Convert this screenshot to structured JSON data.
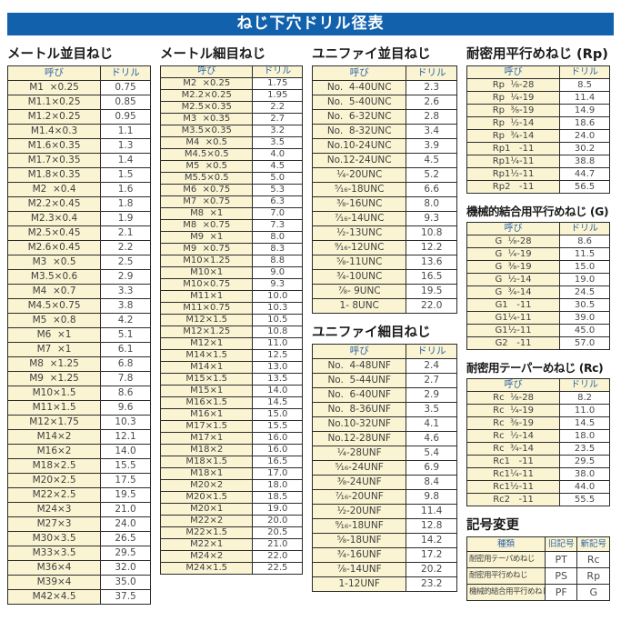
{
  "title": "ねじ下穴ドリル径表",
  "headers": {
    "name": "呼び",
    "drill": "ドリル"
  },
  "colors": {
    "title_bar_blue": "#1161AD",
    "header_text_blue": "#2E64A5",
    "cell_cream": "#FAF4D3",
    "border": "#2B2B2B"
  },
  "sections": {
    "metric_coarse": {
      "title": "メートル並目ねじ",
      "rows": [
        [
          "M1  ×0.25",
          "0.75"
        ],
        [
          "M1.1×0.25",
          "0.85"
        ],
        [
          "M1.2×0.25",
          "0.95"
        ],
        [
          "M1.4×0.3",
          "1.1"
        ],
        [
          "M1.6×0.35",
          "1.3"
        ],
        [
          "M1.7×0.35",
          "1.4"
        ],
        [
          "M1.8×0.35",
          "1.5"
        ],
        [
          "M2  ×0.4",
          "1.6"
        ],
        [
          "M2.2×0.45",
          "1.8"
        ],
        [
          "M2.3×0.4",
          "1.9"
        ],
        [
          "M2.5×0.45",
          "2.1"
        ],
        [
          "M2.6×0.45",
          "2.2"
        ],
        [
          "M3  ×0.5",
          "2.5"
        ],
        [
          "M3.5×0.6",
          "2.9"
        ],
        [
          "M4  ×0.7",
          "3.3"
        ],
        [
          "M4.5×0.75",
          "3.8"
        ],
        [
          "M5  ×0.8",
          "4.2"
        ],
        [
          "M6  ×1",
          "5.1"
        ],
        [
          "M7  ×1",
          "6.1"
        ],
        [
          "M8  ×1.25",
          "6.8"
        ],
        [
          "M9  ×1.25",
          "7.8"
        ],
        [
          "M10×1.5",
          "8.6"
        ],
        [
          "M11×1.5",
          "9.6"
        ],
        [
          "M12×1.75",
          "10.3"
        ],
        [
          "M14×2",
          "12.1"
        ],
        [
          "M16×2",
          "14.0"
        ],
        [
          "M18×2.5",
          "15.5"
        ],
        [
          "M20×2.5",
          "17.5"
        ],
        [
          "M22×2.5",
          "19.5"
        ],
        [
          "M24×3",
          "21.0"
        ],
        [
          "M27×3",
          "24.0"
        ],
        [
          "M30×3.5",
          "26.5"
        ],
        [
          "M33×3.5",
          "29.5"
        ],
        [
          "M36×4",
          "32.0"
        ],
        [
          "M39×4",
          "35.0"
        ],
        [
          "M42×4.5",
          "37.5"
        ]
      ]
    },
    "metric_fine": {
      "title": "メートル細目ねじ",
      "rows": [
        [
          "M2  ×0.25",
          "1.75"
        ],
        [
          "M2.2×0.25",
          "1.95"
        ],
        [
          "M2.5×0.35",
          "2.2"
        ],
        [
          "M3  ×0.35",
          "2.7"
        ],
        [
          "M3.5×0.35",
          "3.2"
        ],
        [
          "M4  ×0.5",
          "3.5"
        ],
        [
          "M4.5×0.5",
          "4.0"
        ],
        [
          "M5  ×0.5",
          "4.5"
        ],
        [
          "M5.5×0.5",
          "5.0"
        ],
        [
          "M6  ×0.75",
          "5.3"
        ],
        [
          "M7  ×0.75",
          "6.3"
        ],
        [
          "M8  ×1",
          "7.0"
        ],
        [
          "M8  ×0.75",
          "7.3"
        ],
        [
          "M9  ×1",
          "8.0"
        ],
        [
          "M9  ×0.75",
          "8.3"
        ],
        [
          "M10×1.25",
          "8.8"
        ],
        [
          "M10×1",
          "9.0"
        ],
        [
          "M10×0.75",
          "9.3"
        ],
        [
          "M11×1",
          "10.0"
        ],
        [
          "M11×0.75",
          "10.3"
        ],
        [
          "M12×1.5",
          "10.5"
        ],
        [
          "M12×1.25",
          "10.8"
        ],
        [
          "M12×1",
          "11.0"
        ],
        [
          "M14×1.5",
          "12.5"
        ],
        [
          "M14×1",
          "13.0"
        ],
        [
          "M15×1.5",
          "13.5"
        ],
        [
          "M15×1",
          "14.0"
        ],
        [
          "M16×1.5",
          "14.5"
        ],
        [
          "M16×1",
          "15.0"
        ],
        [
          "M17×1.5",
          "15.5"
        ],
        [
          "M17×1",
          "16.0"
        ],
        [
          "M18×2",
          "16.0"
        ],
        [
          "M18×1.5",
          "16.5"
        ],
        [
          "M18×1",
          "17.0"
        ],
        [
          "M20×2",
          "18.0"
        ],
        [
          "M20×1.5",
          "18.5"
        ],
        [
          "M20×1",
          "19.0"
        ],
        [
          "M22×2",
          "20.0"
        ],
        [
          "M22×1.5",
          "20.5"
        ],
        [
          "M22×1",
          "21.0"
        ],
        [
          "M24×2",
          "22.0"
        ],
        [
          "M24×1.5",
          "22.5"
        ]
      ]
    },
    "unified_coarse": {
      "title": "ユニファイ並目ねじ",
      "rows": [
        [
          "No.  4-40UNC",
          "2.3"
        ],
        [
          "No.  5-40UNC",
          "2.6"
        ],
        [
          "No.  6-32UNC",
          "2.8"
        ],
        [
          "No.  8-32UNC",
          "3.4"
        ],
        [
          "No.10-24UNC",
          "3.9"
        ],
        [
          "No.12-24UNC",
          "4.5"
        ],
        [
          "¹⁄₄-20UNC",
          "5.2"
        ],
        [
          "⁵⁄₁₆-18UNC",
          "6.6"
        ],
        [
          "³⁄₈-16UNC",
          "8.0"
        ],
        [
          "⁷⁄₁₆-14UNC",
          "9.3"
        ],
        [
          "¹⁄₂-13UNC",
          "10.8"
        ],
        [
          "⁹⁄₁₆-12UNC",
          "12.2"
        ],
        [
          "⁵⁄₈-11UNC",
          "13.6"
        ],
        [
          "³⁄₄-10UNC",
          "16.5"
        ],
        [
          "⁷⁄₈- 9UNC",
          "19.5"
        ],
        [
          "1- 8UNC",
          "22.0"
        ]
      ]
    },
    "unified_fine": {
      "title": "ユニファイ細目ねじ",
      "rows": [
        [
          "No.  4-48UNF",
          "2.4"
        ],
        [
          "No.  5-44UNF",
          "2.7"
        ],
        [
          "No.  6-40UNF",
          "2.9"
        ],
        [
          "No.  8-36UNF",
          "3.5"
        ],
        [
          "No.10-32UNF",
          "4.1"
        ],
        [
          "No.12-28UNF",
          "4.6"
        ],
        [
          "¹⁄₄-28UNF",
          "5.4"
        ],
        [
          "⁵⁄₁₆-24UNF",
          "6.9"
        ],
        [
          "³⁄₈-24UNF",
          "8.4"
        ],
        [
          "⁷⁄₁₆-20UNF",
          "9.8"
        ],
        [
          "¹⁄₂-20UNF",
          "11.4"
        ],
        [
          "⁹⁄₁₆-18UNF",
          "12.8"
        ],
        [
          "⁵⁄₈-18UNF",
          "14.2"
        ],
        [
          "³⁄₄-16UNF",
          "17.2"
        ],
        [
          "⁷⁄₈-14UNF",
          "20.2"
        ],
        [
          "1-12UNF",
          "23.2"
        ]
      ]
    },
    "rp": {
      "title": "耐密用平行めねじ (Rp)",
      "rows": [
        [
          "Rp  ¹⁄₈-28",
          "8.5"
        ],
        [
          "Rp  ¹⁄₄-19",
          "11.4"
        ],
        [
          "Rp  ³⁄₈-19",
          "14.9"
        ],
        [
          "Rp  ¹⁄₂-14",
          "18.6"
        ],
        [
          "Rp  ³⁄₄-14",
          "24.0"
        ],
        [
          "Rp1   -11",
          "30.2"
        ],
        [
          "Rp1¹⁄₄-11",
          "38.8"
        ],
        [
          "Rp1¹⁄₂-11",
          "44.7"
        ],
        [
          "Rp2   -11",
          "56.5"
        ]
      ]
    },
    "g": {
      "title": "機械的結合用平行めねじ (G)",
      "rows": [
        [
          "G  ¹⁄₈-28",
          "8.6"
        ],
        [
          "G  ¹⁄₄-19",
          "11.5"
        ],
        [
          "G  ³⁄₈-19",
          "15.0"
        ],
        [
          "G  ¹⁄₂-14",
          "19.0"
        ],
        [
          "G  ³⁄₄-14",
          "24.5"
        ],
        [
          "G1   -11",
          "30.5"
        ],
        [
          "G1¹⁄₄-11",
          "39.0"
        ],
        [
          "G1¹⁄₂-11",
          "45.0"
        ],
        [
          "G2   -11",
          "57.0"
        ]
      ]
    },
    "rc": {
      "title": "耐密用テーパーめねじ (Rc)",
      "rows": [
        [
          "Rc  ¹⁄₈-28",
          "8.2"
        ],
        [
          "Rc  ¹⁄₄-19",
          "11.0"
        ],
        [
          "Rc  ³⁄₈-19",
          "14.5"
        ],
        [
          "Rc  ¹⁄₂-14",
          "18.0"
        ],
        [
          "Rc  ³⁄₄-14",
          "23.5"
        ],
        [
          "Rc1   -11",
          "29.5"
        ],
        [
          "Rc1¹⁄₄-11",
          "38.0"
        ],
        [
          "Rc1¹⁄₂-11",
          "44.0"
        ],
        [
          "Rc2   -11",
          "55.5"
        ]
      ]
    },
    "symbol_change": {
      "title": "記号変更",
      "headers": [
        "種類",
        "旧記号",
        "新記号"
      ],
      "rows": [
        [
          "耐密用テーパめねじ",
          "PT",
          "Rc"
        ],
        [
          "耐密用平行めねじ",
          "PS",
          "Rp"
        ],
        [
          "機械的結合用平行めねじ",
          "PF",
          "G"
        ]
      ]
    }
  }
}
